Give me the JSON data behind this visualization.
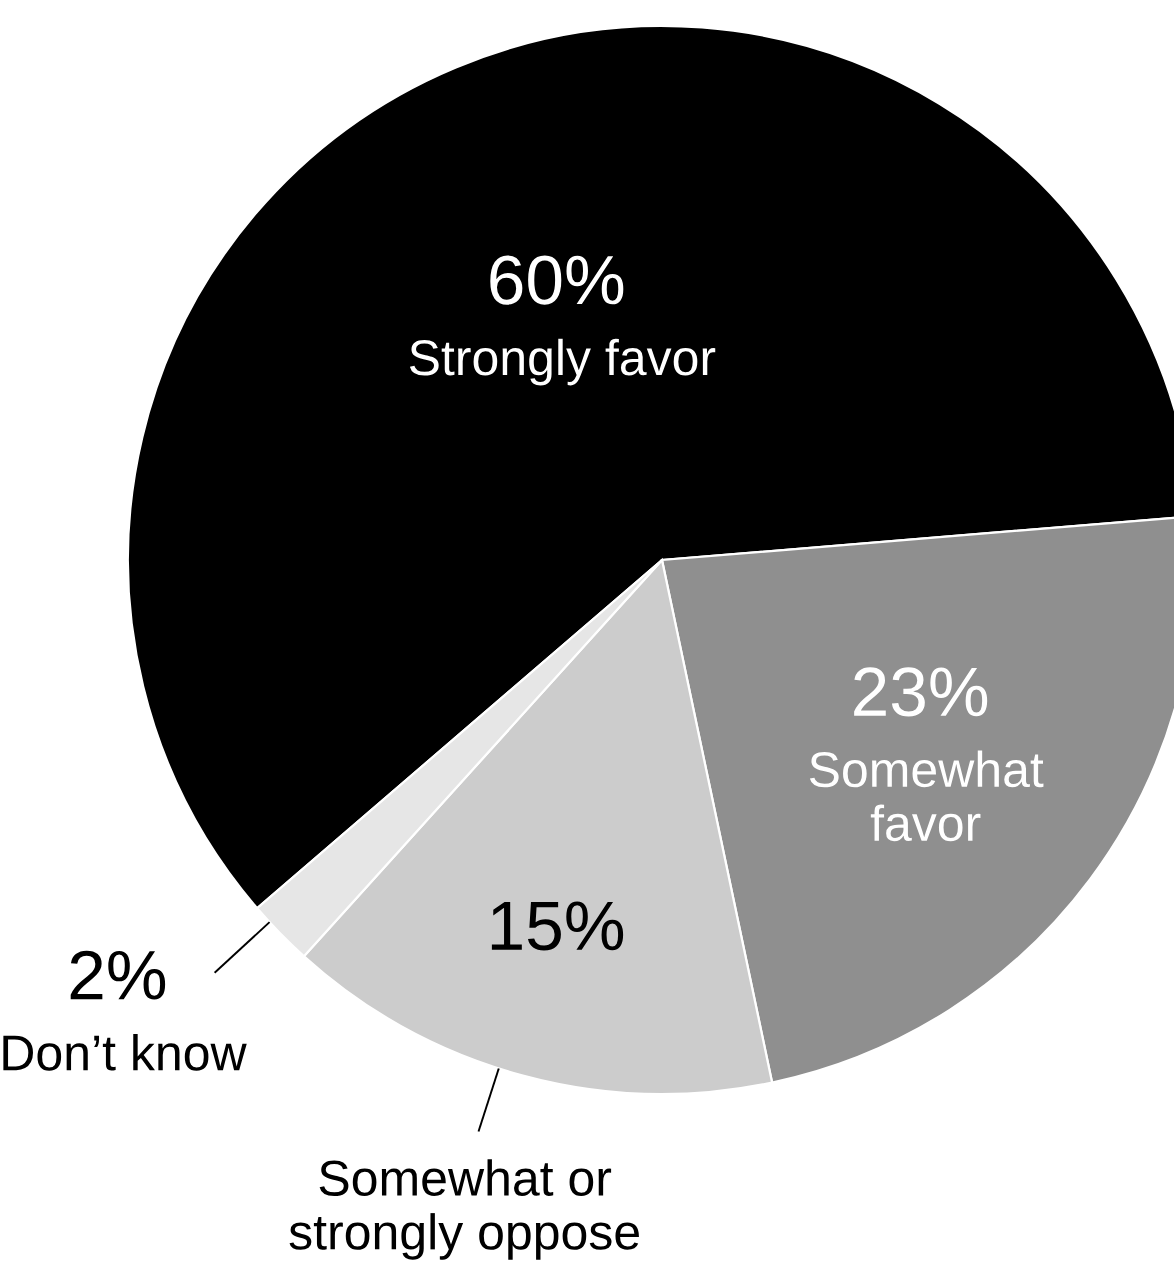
{
  "chart_data": {
    "type": "pie",
    "categories": [
      "Strongly favor",
      "Somewhat favor",
      "Somewhat or strongly oppose",
      "Don’t know"
    ],
    "values": [
      60,
      23,
      15,
      2
    ],
    "colors": [
      "#000000",
      "#8f8f8f",
      "#cccccc",
      "#e6e6e6"
    ],
    "value_labels": [
      "60%",
      "23%",
      "15%",
      "2%"
    ]
  }
}
